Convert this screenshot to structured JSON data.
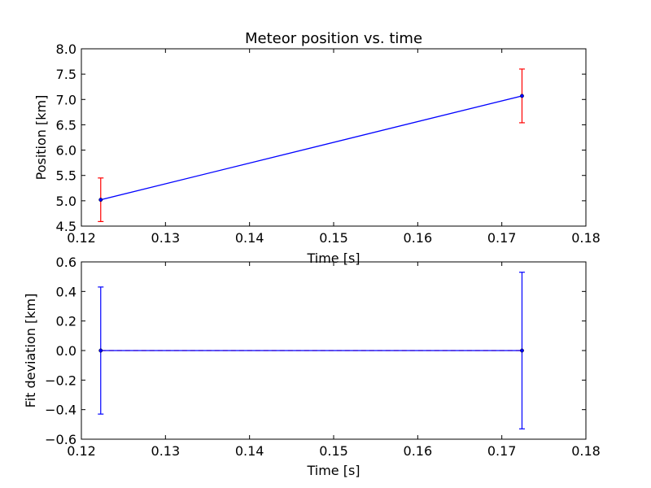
{
  "chart_data": [
    {
      "type": "line",
      "title": "Meteor position vs. time",
      "xlabel": "Time [s]",
      "ylabel": "Position [km]",
      "xlim": [
        0.12,
        0.18
      ],
      "ylim": [
        4.5,
        8.0
      ],
      "xticks": [
        "0.12",
        "0.13",
        "0.14",
        "0.15",
        "0.16",
        "0.17",
        "0.18"
      ],
      "yticks": [
        "4.5",
        "5.0",
        "5.5",
        "6.0",
        "6.5",
        "7.0",
        "7.5",
        "8.0"
      ],
      "grid": false,
      "series": [
        {
          "x": [
            0.1223,
            0.1724
          ],
          "y": [
            5.02,
            7.07
          ],
          "yerr": [
            0.43,
            0.53
          ],
          "line_color": "#0000ff",
          "marker_color": "#0000ff",
          "errorbar_color": "#ff0000"
        }
      ]
    },
    {
      "type": "line",
      "title": "",
      "xlabel": "Time [s]",
      "ylabel": "Fit deviation [km]",
      "xlim": [
        0.12,
        0.18
      ],
      "ylim": [
        -0.6,
        0.6
      ],
      "xticks": [
        "0.12",
        "0.13",
        "0.14",
        "0.15",
        "0.16",
        "0.17",
        "0.18"
      ],
      "yticks": [
        "−0.6",
        "−0.4",
        "−0.2",
        "0.0",
        "0.2",
        "0.4",
        "0.6"
      ],
      "grid": false,
      "reference_line": {
        "y": 0,
        "color": "#ff0000",
        "style": "dashed"
      },
      "series": [
        {
          "x": [
            0.1223,
            0.1724
          ],
          "y": [
            0.0,
            0.0
          ],
          "yerr": [
            0.43,
            0.53
          ],
          "line_color": "#0000ff",
          "marker_color": "#0000ff",
          "errorbar_color": "#0000ff"
        }
      ]
    }
  ]
}
